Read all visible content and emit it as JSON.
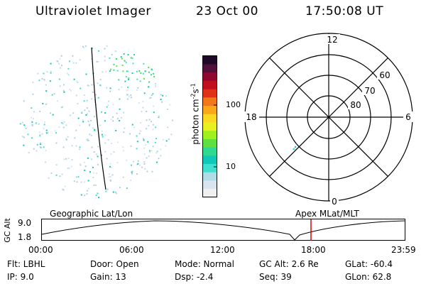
{
  "header": {
    "title": "Ultraviolet Imager",
    "date": "23 Oct 00",
    "time": "17:50:08 UT"
  },
  "polar_grid": {
    "mlt_labels": [
      "12",
      "6",
      "0",
      "18"
    ],
    "lat_labels": [
      "60",
      "70",
      "80"
    ]
  },
  "colorbar": {
    "label": "photon cm",
    "label_sup1": "-2",
    "label_mid": "s",
    "label_sup2": "-1",
    "ticks": [
      "100",
      "10"
    ],
    "colors": [
      "#f0f0f0",
      "#d8e4ee",
      "#b0dce8",
      "#40e0d0",
      "#10c8b8",
      "#30d890",
      "#60e040",
      "#a0f020",
      "#e8f020",
      "#f8d820",
      "#f8a818",
      "#f07818",
      "#e03018",
      "#c01020",
      "#900830",
      "#50103a",
      "#200828"
    ]
  },
  "timeline": {
    "left_label": "Geographic Lat/Lon",
    "right_label": "Apex MLat/MLT",
    "y_axis_label": "GC Alt",
    "y_ticks": [
      "9.0",
      "1.8"
    ],
    "x_ticks": [
      "00:00",
      "06:00",
      "12:00",
      "18:00",
      "23:59"
    ],
    "marker_time": "17:50",
    "marker_color": "#dd0000"
  },
  "info": {
    "filter": "Flt: LBHL",
    "ip": "IP:  9.0",
    "door": "Door: Open",
    "gain": "Gain: 13",
    "mode": "Mode: Normal",
    "dsp": "Dsp:    -2.4",
    "gc_alt": "GC Alt: 2.6 Re",
    "seq": "Seq: 39",
    "glat": "GLat:  -60.4",
    "glon": "GLon:  62.8"
  }
}
